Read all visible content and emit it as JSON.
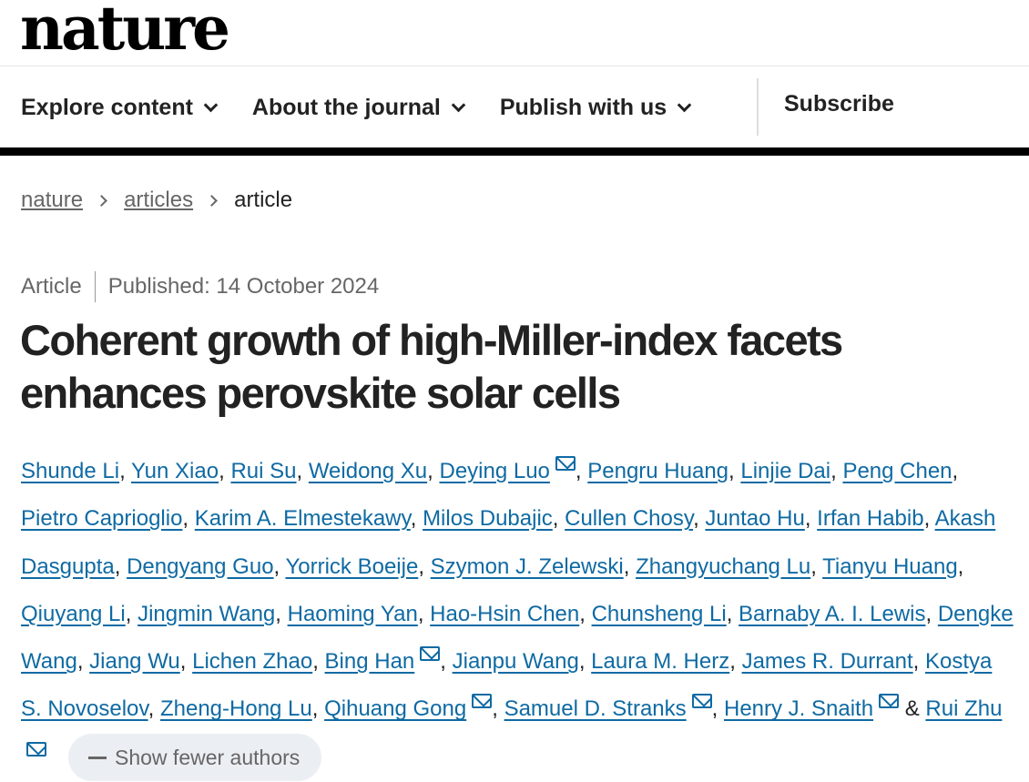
{
  "header": {
    "logo": "nature"
  },
  "nav": {
    "items": [
      "Explore content",
      "About the journal",
      "Publish with us"
    ],
    "subscribe": "Subscribe"
  },
  "breadcrumb": {
    "items": [
      "nature",
      "articles"
    ],
    "current": "article"
  },
  "article": {
    "type": "Article",
    "published": "Published: 14 October 2024",
    "title": "Coherent growth of high-Miller-index facets enhances perovskite solar cells",
    "authors": [
      {
        "name": "Shunde Li"
      },
      {
        "name": "Yun Xiao"
      },
      {
        "name": "Rui Su"
      },
      {
        "name": "Weidong Xu"
      },
      {
        "name": "Deying Luo",
        "email": true
      },
      {
        "name": "Pengru Huang"
      },
      {
        "name": "Linjie Dai"
      },
      {
        "name": "Peng Chen"
      },
      {
        "name": "Pietro Caprioglio"
      },
      {
        "name": "Karim A. Elmestekawy"
      },
      {
        "name": "Milos Dubajic"
      },
      {
        "name": "Cullen Chosy"
      },
      {
        "name": "Juntao Hu"
      },
      {
        "name": "Irfan Habib"
      },
      {
        "name": "Akash Dasgupta"
      },
      {
        "name": "Dengyang Guo"
      },
      {
        "name": "Yorrick Boeije"
      },
      {
        "name": "Szymon J. Zelewski"
      },
      {
        "name": "Zhangyuchang Lu"
      },
      {
        "name": "Tianyu Huang"
      },
      {
        "name": "Qiuyang Li"
      },
      {
        "name": "Jingmin Wang"
      },
      {
        "name": "Haoming Yan"
      },
      {
        "name": "Hao-Hsin Chen"
      },
      {
        "name": "Chunsheng Li"
      },
      {
        "name": "Barnaby A. I. Lewis"
      },
      {
        "name": "Dengke Wang"
      },
      {
        "name": "Jiang Wu"
      },
      {
        "name": "Lichen Zhao"
      },
      {
        "name": "Bing Han",
        "email": true
      },
      {
        "name": "Jianpu Wang"
      },
      {
        "name": "Laura M. Herz"
      },
      {
        "name": "James R. Durrant"
      },
      {
        "name": "Kostya S. Novoselov"
      },
      {
        "name": "Zheng-Hong Lu"
      },
      {
        "name": "Qihuang Gong",
        "email": true
      },
      {
        "name": "Samuel D. Stranks",
        "email": true
      },
      {
        "name": "Henry J. Snaith",
        "email": true
      },
      {
        "name": "Rui Zhu",
        "email": true
      }
    ],
    "separator": ", ",
    "last_separator": " & ",
    "show_fewer": "Show fewer authors"
  },
  "colors": {
    "link": "#0f6aa3",
    "bar": "#000000"
  }
}
